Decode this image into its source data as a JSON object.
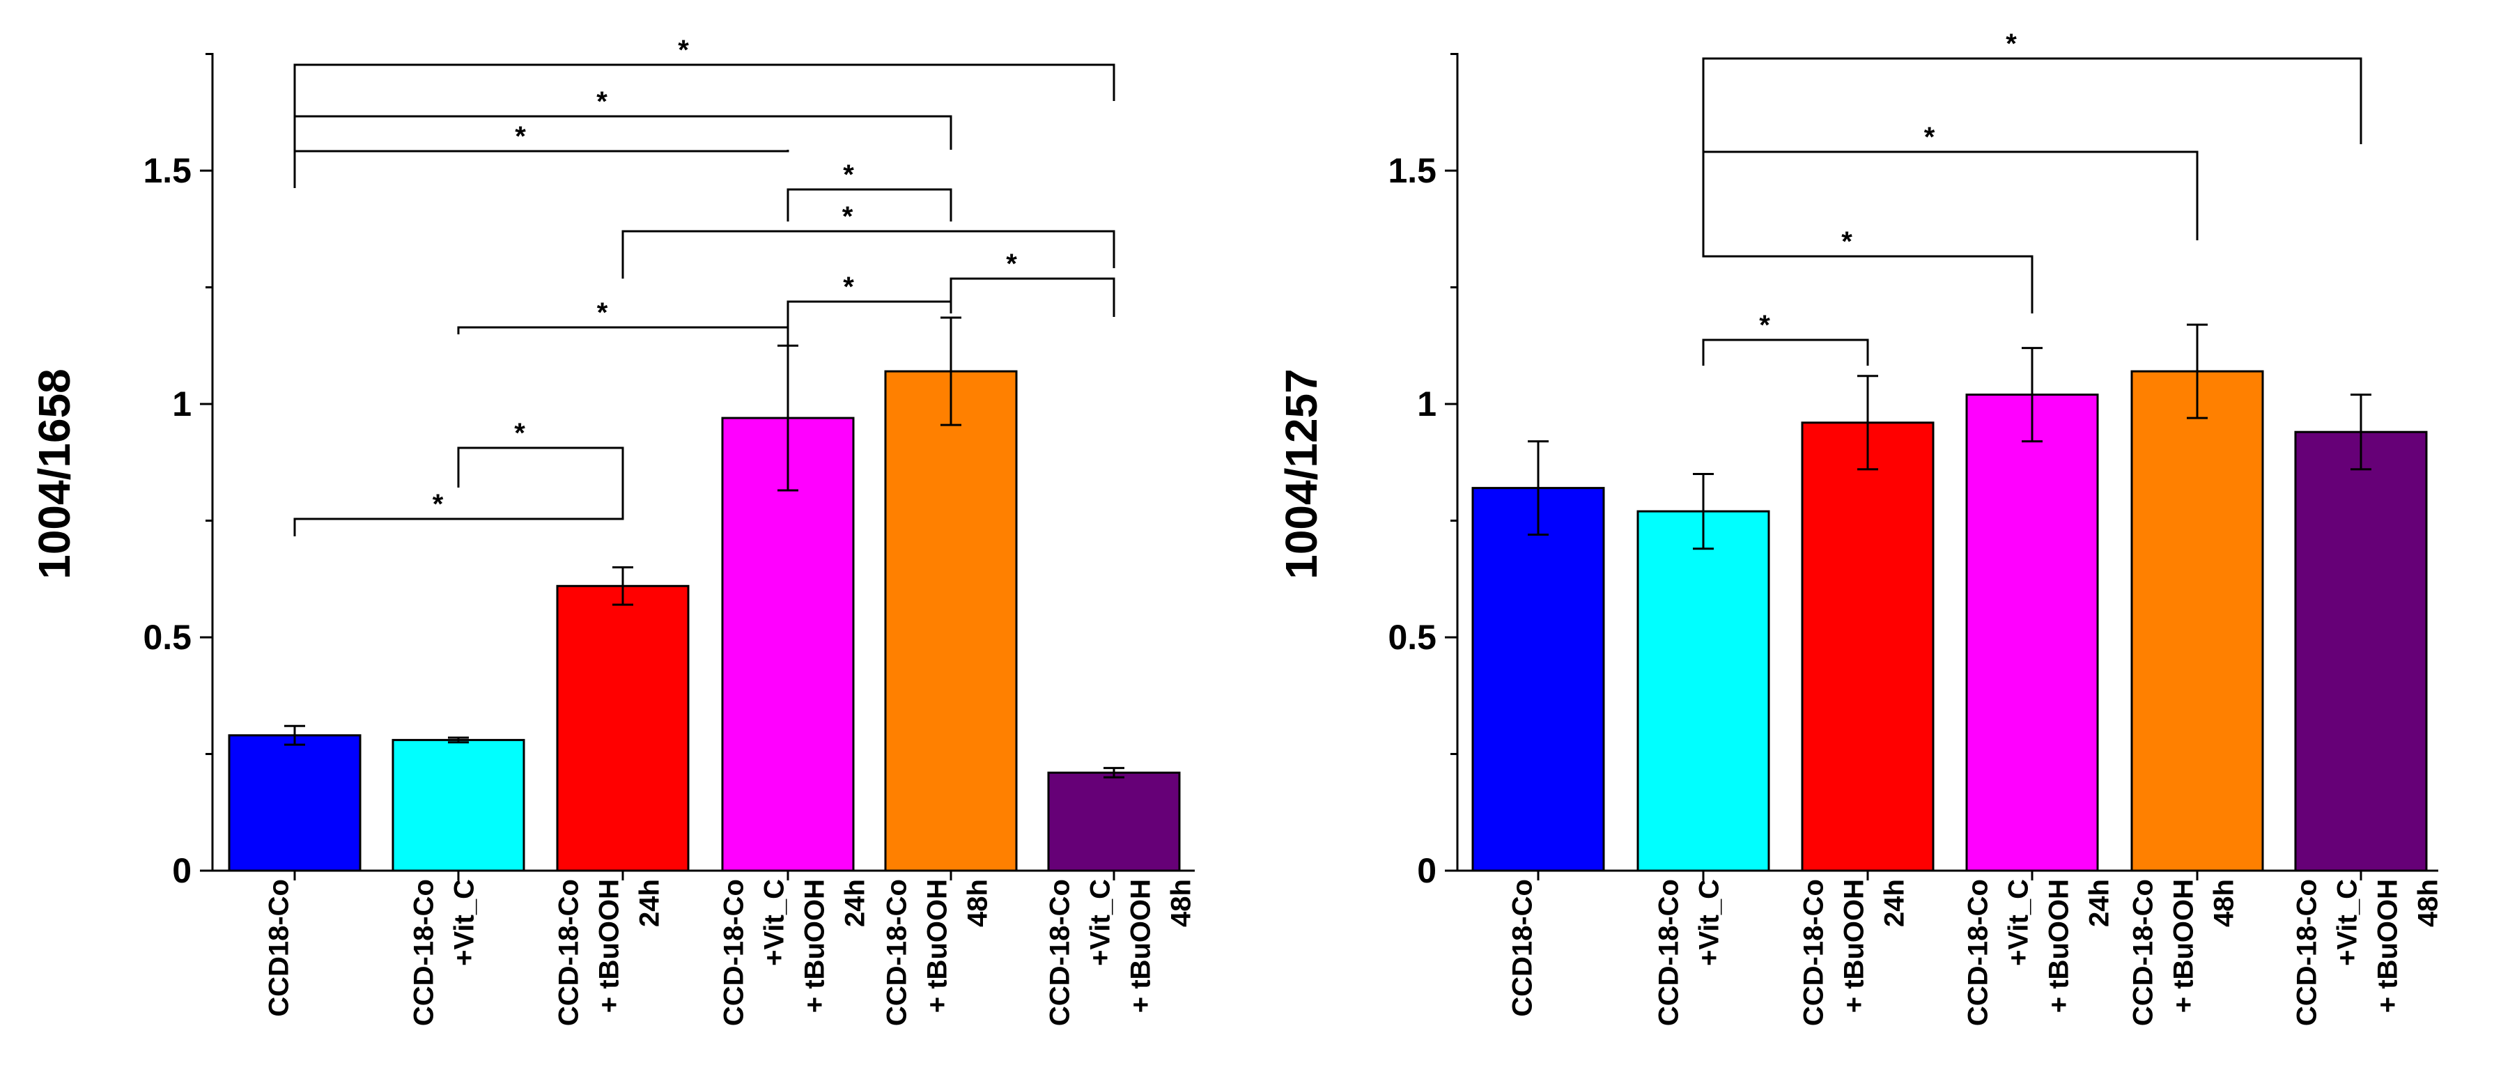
{
  "chart_data": [
    {
      "type": "bar",
      "ylabel": "1004/1658",
      "ylim": [
        0,
        1.7
      ],
      "yticks": [
        0,
        0.5,
        1,
        1.5
      ],
      "ytick_labels": [
        "0",
        "0.5",
        "1",
        "1.5"
      ],
      "categories": [
        [
          "CCD18-Co"
        ],
        [
          "CCD-18-Co",
          "+Vit_C"
        ],
        [
          "CCD-18-Co",
          "+ tBuOOH",
          "24h"
        ],
        [
          "CCD-18-Co",
          "+Vit_C",
          "+ tBuOOH",
          "24h"
        ],
        [
          "CCD-18-Co",
          "+ tBuOOH",
          "48h"
        ],
        [
          "CCD-18-Co",
          "+Vit_C",
          "+ tBuOOH",
          "48h"
        ]
      ],
      "values": [
        0.29,
        0.28,
        0.61,
        0.97,
        1.07,
        0.21
      ],
      "errors": [
        0.02,
        0.005,
        0.04,
        0.155,
        0.115,
        0.01
      ],
      "colors": [
        "#0000ff",
        "#00ffff",
        "#ff0000",
        "#ff00ff",
        "#ff8000",
        "#660077"
      ],
      "significance": [
        {
          "a": 0,
          "b": 2,
          "label": "*"
        },
        {
          "a": 1,
          "b": 2,
          "label": "*"
        },
        {
          "a": 1,
          "b": 3,
          "label": "*"
        },
        {
          "a": 3,
          "b": 4,
          "label": "*"
        },
        {
          "a": 4,
          "b": 5,
          "label": "*"
        },
        {
          "a": 2,
          "b": 5,
          "label": "*"
        },
        {
          "a": 3,
          "b": 4,
          "label": "*"
        },
        {
          "a": 0,
          "b": 3,
          "label": "*"
        },
        {
          "a": 0,
          "b": 4,
          "label": "*"
        },
        {
          "a": 0,
          "b": 5,
          "label": "*"
        }
      ]
    },
    {
      "type": "bar",
      "ylabel": "1004/1257",
      "ylim": [
        0,
        1.7
      ],
      "yticks": [
        0,
        0.5,
        1,
        1.5
      ],
      "ytick_labels": [
        "0",
        "0.5",
        "1",
        "1.5"
      ],
      "categories": [
        [
          "CCD18-Co"
        ],
        [
          "CCD-18-Co",
          "+Vit_C"
        ],
        [
          "CCD-18-Co",
          "+ tBuOOH",
          "24h"
        ],
        [
          "CCD-18-Co",
          "+Vit_C",
          "+ tBuOOH",
          "24h"
        ],
        [
          "CCD-18-Co",
          "+ tBuOOH",
          "48h"
        ],
        [
          "CCD-18-Co",
          "+Vit_C",
          "+ tBuOOH",
          "48h"
        ]
      ],
      "values": [
        0.82,
        0.77,
        0.96,
        1.02,
        1.07,
        0.94
      ],
      "errors": [
        0.1,
        0.08,
        0.1,
        0.1,
        0.1,
        0.08
      ],
      "colors": [
        "#0000ff",
        "#00ffff",
        "#ff0000",
        "#ff00ff",
        "#ff8000",
        "#660077"
      ],
      "significance": [
        {
          "a": 1,
          "b": 2,
          "label": "*"
        },
        {
          "a": 1,
          "b": 3,
          "label": "*"
        },
        {
          "a": 1,
          "b": 4,
          "label": "*"
        },
        {
          "a": 1,
          "b": 5,
          "label": "*"
        }
      ]
    }
  ]
}
